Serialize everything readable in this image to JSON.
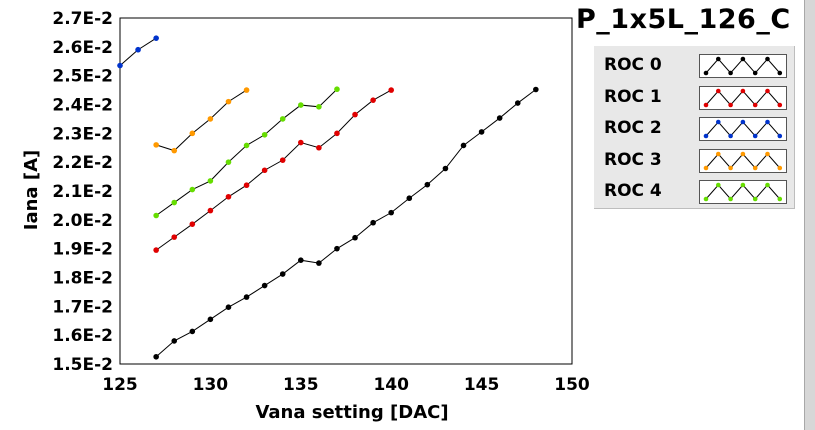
{
  "chart_data": {
    "type": "line",
    "title": "P_1x5L_126_C",
    "xlabel": "Vana setting [DAC]",
    "ylabel": "Iana [A]",
    "xlim": [
      125,
      150
    ],
    "ylim": [
      0.015,
      0.027
    ],
    "xticks": [
      125,
      130,
      135,
      140,
      145,
      150
    ],
    "yticks": [
      {
        "v": 0.015,
        "label": "1.5E-2"
      },
      {
        "v": 0.016,
        "label": "1.6E-2"
      },
      {
        "v": 0.017,
        "label": "1.7E-2"
      },
      {
        "v": 0.018,
        "label": "1.8E-2"
      },
      {
        "v": 0.019,
        "label": "1.9E-2"
      },
      {
        "v": 0.02,
        "label": "2.0E-2"
      },
      {
        "v": 0.021,
        "label": "2.1E-2"
      },
      {
        "v": 0.022,
        "label": "2.2E-2"
      },
      {
        "v": 0.023,
        "label": "2.3E-2"
      },
      {
        "v": 0.024,
        "label": "2.4E-2"
      },
      {
        "v": 0.025,
        "label": "2.5E-2"
      },
      {
        "v": 0.026,
        "label": "2.6E-2"
      },
      {
        "v": 0.027,
        "label": "2.7E-2"
      }
    ],
    "grid": true,
    "series": [
      {
        "name": "ROC 0",
        "color": "#000000",
        "x": [
          127,
          128,
          129,
          130,
          131,
          132,
          133,
          134,
          135,
          136,
          137,
          138,
          139,
          140,
          141,
          142,
          143,
          144,
          145,
          146,
          147,
          148
        ],
        "y": [
          0.01525,
          0.0158,
          0.01613,
          0.01655,
          0.01697,
          0.01732,
          0.01772,
          0.01812,
          0.0186,
          0.0185,
          0.019,
          0.01938,
          0.0199,
          0.02025,
          0.02075,
          0.02122,
          0.02178,
          0.02258,
          0.02305,
          0.02353,
          0.02405,
          0.02452
        ]
      },
      {
        "name": "ROC 1",
        "color": "#e00000",
        "x": [
          127,
          128,
          129,
          130,
          131,
          132,
          133,
          134,
          135,
          136,
          137,
          138,
          139,
          140
        ],
        "y": [
          0.01895,
          0.0194,
          0.01985,
          0.02032,
          0.0208,
          0.0212,
          0.02172,
          0.02207,
          0.02268,
          0.0225,
          0.023,
          0.02365,
          0.02415,
          0.0245
        ]
      },
      {
        "name": "ROC 2",
        "color": "#0033cc",
        "x": [
          125,
          126,
          127
        ],
        "y": [
          0.02535,
          0.0259,
          0.0263
        ]
      },
      {
        "name": "ROC 3",
        "color": "#ff9900",
        "x": [
          127,
          128,
          129,
          130,
          131,
          132
        ],
        "y": [
          0.0226,
          0.0224,
          0.023,
          0.0235,
          0.0241,
          0.0245
        ]
      },
      {
        "name": "ROC 4",
        "color": "#66dd00",
        "x": [
          127,
          128,
          129,
          130,
          131,
          132,
          133,
          134,
          135,
          136,
          137
        ],
        "y": [
          0.02015,
          0.0206,
          0.02105,
          0.02135,
          0.022,
          0.02258,
          0.02295,
          0.0235,
          0.02398,
          0.02392,
          0.02453
        ]
      }
    ]
  }
}
